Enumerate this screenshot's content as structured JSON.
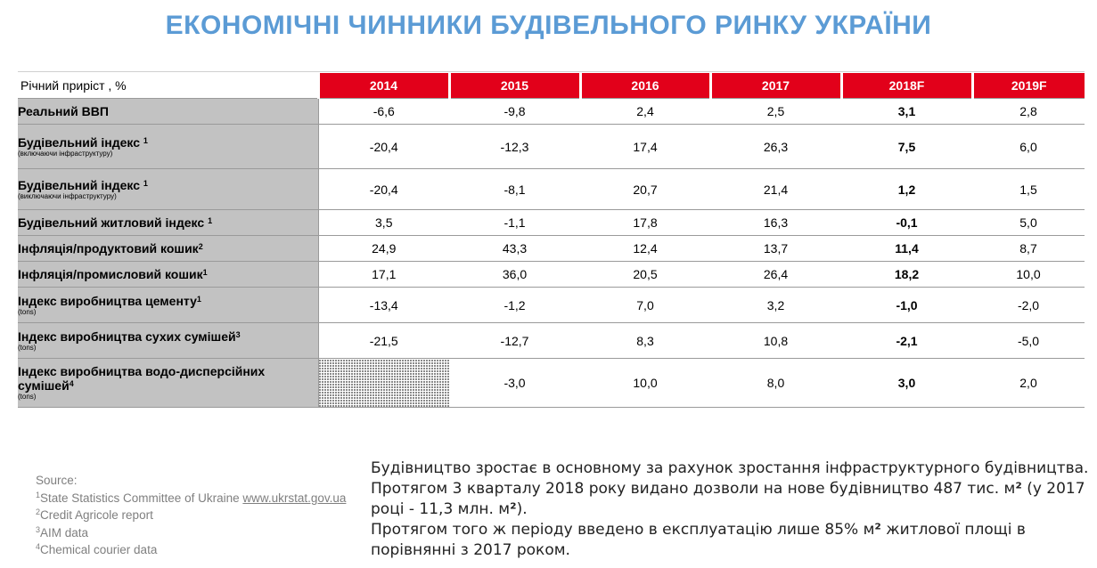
{
  "title": "ЕКОНОМІЧНІ ЧИННИКИ БУДІВЕЛЬНОГО РИНКУ УКРАЇНИ",
  "table": {
    "header_label": "Річний приріст , %",
    "years": [
      "2014",
      "2015",
      "2016",
      "2017",
      "2018F",
      "2019F"
    ],
    "rows": [
      {
        "name": "Реальний ВВП",
        "sup": "",
        "sub": "",
        "values": [
          "-6,6",
          "-9,8",
          "2,4",
          "2,5",
          "3,1",
          "2,8"
        ]
      },
      {
        "name": "Будівельний індекс ",
        "sup": "1",
        "sub": "(включаючи інфраструктуру)",
        "values": [
          "-20,4",
          "-12,3",
          "17,4",
          "26,3",
          "7,5",
          "6,0"
        ]
      },
      {
        "name": "Будівельний індекс ",
        "sup": "1",
        "sub": "(виключаючи інфраструктуру)",
        "values": [
          "-20,4",
          "-8,1",
          "20,7",
          "21,4",
          "1,2",
          "1,5"
        ]
      },
      {
        "name": "Будівельний житловий індекс ",
        "sup": "1",
        "sub": "",
        "values": [
          "3,5",
          "-1,1",
          "17,8",
          "16,3",
          "-0,1",
          "5,0"
        ]
      },
      {
        "name": "Інфляція/продуктовий кошик",
        "sup": "2",
        "sub": "",
        "values": [
          "24,9",
          "43,3",
          "12,4",
          "13,7",
          "11,4",
          "8,7"
        ]
      },
      {
        "name": "Інфляція/промисловий кошик",
        "sup": "1",
        "sub": "",
        "values": [
          "17,1",
          "36,0",
          "20,5",
          "26,4",
          "18,2",
          "10,0"
        ]
      },
      {
        "name": "Індекс виробництва цементу",
        "sup": "1",
        "sub": "(tons)",
        "values": [
          "-13,4",
          "-1,2",
          "7,0",
          "3,2",
          "-1,0",
          "-2,0"
        ]
      },
      {
        "name": "Індекс виробництва сухих сумішей",
        "sup": "3",
        "sub": "(tons)",
        "values": [
          "-21,5",
          "-12,7",
          "8,3",
          "10,8",
          "-2,1",
          "-5,0"
        ]
      },
      {
        "name": "Індекс виробництва водо-дисперсійних сумішей",
        "sup": "4",
        "sub": "(tons)",
        "values": [
          "",
          "-3,0",
          "10,0",
          "8,0",
          "3,0",
          "2,0"
        ]
      }
    ]
  },
  "sources": {
    "heading": "Source:",
    "items": [
      {
        "num": "1",
        "text": "State Statistics Committee of Ukraine ",
        "link": "www.ukrstat.gov.ua"
      },
      {
        "num": "2",
        "text": "Credit Agricole report",
        "link": ""
      },
      {
        "num": "3",
        "text": "AIM data",
        "link": ""
      },
      {
        "num": "4",
        "text": "Chemical courier data",
        "link": ""
      }
    ]
  },
  "note": {
    "p1": "Будівництво зростає в основному за рахунок зростання інфраструктурного будівництва.",
    "p2a": "Протягом 3 кварталу 2018 року видано дозволи на нове будівництво 487 тис. м",
    "p2sq": "²",
    "p2b": " (у 2017 році  - 11,3 млн. м",
    "p2sq2": "²",
    "p2c": ").",
    "p3a": "Протягом того ж періоду введено в експлуатацію лише 85% м",
    "p3sq": "²",
    "p3b": " житлової  площі в порівнянні з 2017 роком."
  },
  "colors": {
    "title": "#5b9bd5",
    "header_red": "#e2001a",
    "row_label_gray": "#c2c2c2"
  }
}
